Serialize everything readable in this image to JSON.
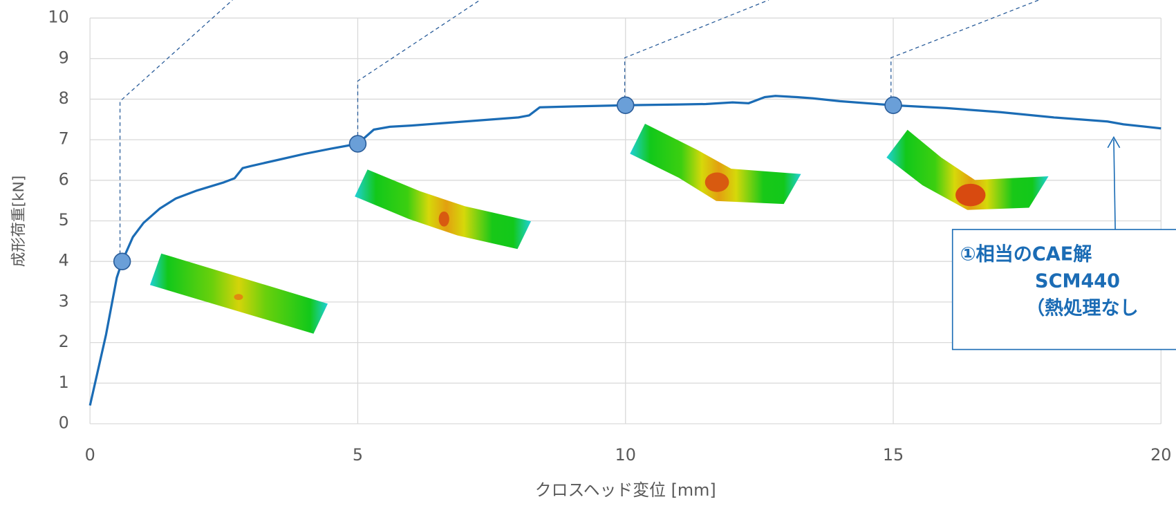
{
  "chart_data": {
    "type": "line",
    "x_label": "クロスヘッド変位 [mm]",
    "y_label": "成形荷重[kN]",
    "x": [
      0,
      0.3,
      0.5,
      0.6,
      0.8,
      1.0,
      1.3,
      1.6,
      2.0,
      2.5,
      2.7,
      2.85,
      3.0,
      3.5,
      4.0,
      4.5,
      5.0,
      5.3,
      5.6,
      6.0,
      7.0,
      8.0,
      8.2,
      8.4,
      9.0,
      10.0,
      11.0,
      11.5,
      12.0,
      12.3,
      12.6,
      12.8,
      13.2,
      13.5,
      14.0,
      15.0,
      16.0,
      17.0,
      18.0,
      19.0,
      19.3,
      20.0
    ],
    "series": [
      {
        "color": "#1b6cb5",
        "values": [
          0.45,
          2.2,
          3.6,
          4.0,
          4.6,
          4.95,
          5.3,
          5.55,
          5.75,
          5.95,
          6.05,
          6.3,
          6.35,
          6.5,
          6.65,
          6.78,
          6.9,
          7.25,
          7.32,
          7.35,
          7.45,
          7.55,
          7.6,
          7.8,
          7.82,
          7.85,
          7.87,
          7.88,
          7.92,
          7.9,
          8.05,
          8.08,
          8.05,
          8.02,
          7.95,
          7.85,
          7.78,
          7.68,
          7.55,
          7.45,
          7.38,
          7.28
        ]
      }
    ],
    "markers": {
      "x": [
        0.6,
        5,
        10,
        15
      ],
      "values": [
        4.0,
        6.9,
        7.85,
        7.85
      ],
      "color": "#6a9fd8"
    },
    "annotation": [
      "①相当のCAE解",
      "SCM440",
      "（熱処理なし"
    ],
    "xlim": [
      0,
      20
    ],
    "xticks": [
      0,
      5,
      10,
      15,
      20
    ],
    "ylim": [
      0,
      10
    ],
    "yticks": [
      0,
      1,
      2,
      3,
      4,
      5,
      6,
      7,
      8,
      9,
      10
    ],
    "grid": true
  }
}
